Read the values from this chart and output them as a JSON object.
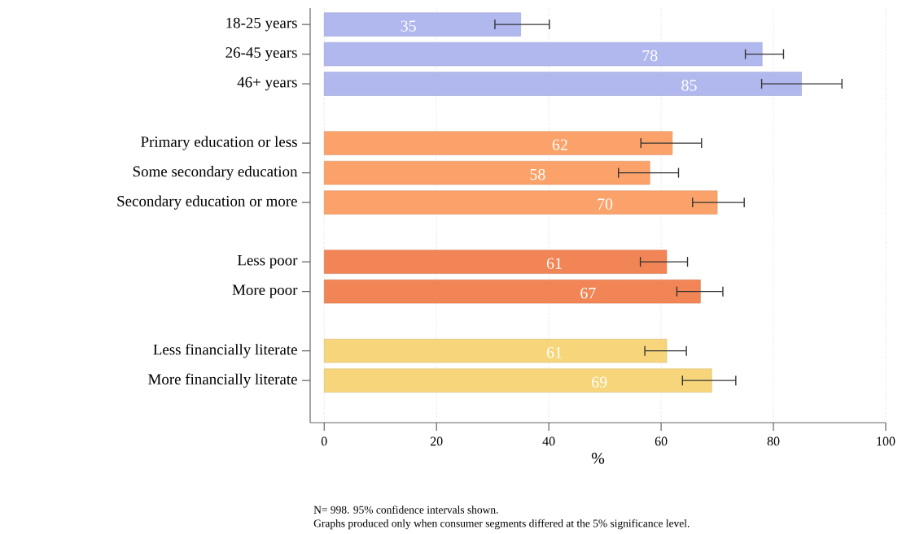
{
  "chart_data": {
    "type": "bar",
    "orientation": "horizontal",
    "xlabel": "%",
    "categories": [
      "18-25 years",
      "26-45 years",
      "46+ years",
      null,
      "Primary education or less",
      "Some secondary education",
      "Secondary education or more",
      null,
      "Less poor",
      "More poor",
      null,
      "Less financially literate",
      "More financially literate"
    ],
    "values": [
      35,
      78,
      85,
      null,
      62,
      58,
      70,
      null,
      61,
      67,
      null,
      61,
      69
    ],
    "colors": [
      "#b0b8ee",
      "#b0b8ee",
      "#b0b8ee",
      null,
      "#fba26a",
      "#fba26a",
      "#fba26a",
      null,
      "#f28556",
      "#f28556",
      null,
      "#f6d57b",
      "#f6d57b"
    ],
    "errors": [
      [
        30.3,
        40.2
      ],
      [
        74.9,
        81.9
      ],
      [
        77.8,
        92.3
      ],
      null,
      [
        56.3,
        67.3
      ],
      [
        52.3,
        63.2
      ],
      [
        65.5,
        74.9
      ],
      null,
      [
        56.2,
        64.8
      ],
      [
        62.7,
        71.1
      ],
      null,
      [
        57.0,
        64.6
      ],
      [
        63.7,
        73.4
      ]
    ],
    "data_labels": true,
    "xlim": [
      -2.5,
      100
    ],
    "xticks": [
      0,
      20,
      40,
      60,
      80,
      100
    ],
    "grid": "x",
    "annotations": [
      "N= 998. 95% confidence intervals shown.",
      "Graphs produced only when consumer segments differed at the 5% significance level."
    ]
  }
}
